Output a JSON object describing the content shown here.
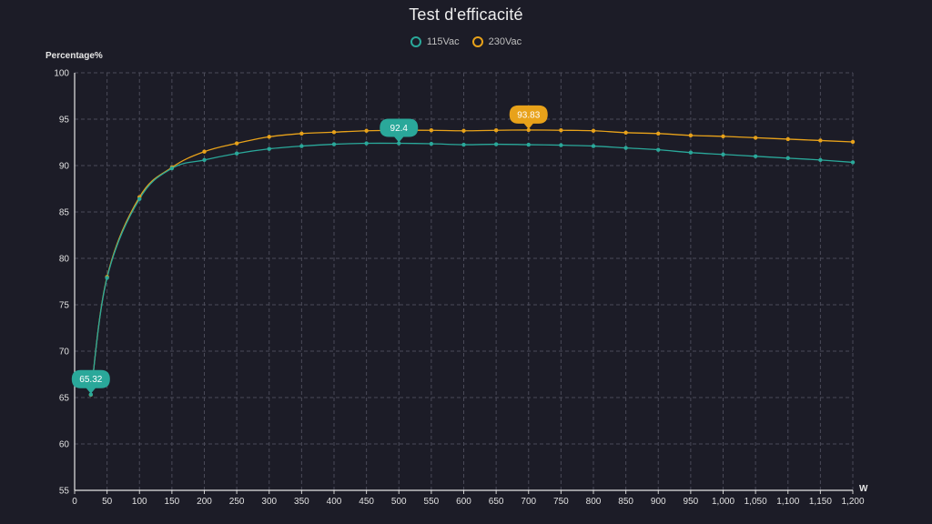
{
  "chart_data": {
    "type": "line",
    "title": "Test d'efficacité",
    "xlabel": "W",
    "ylabel": "Percentage%",
    "xlim": [
      0,
      1200
    ],
    "ylim": [
      55,
      100
    ],
    "grid": true,
    "legend_position": "top-center",
    "x_ticks": [
      "0",
      "50",
      "100",
      "150",
      "200",
      "250",
      "300",
      "350",
      "400",
      "450",
      "500",
      "550",
      "600",
      "650",
      "700",
      "750",
      "800",
      "850",
      "900",
      "950",
      "1,000",
      "1,050",
      "1,100",
      "1,150",
      "1,200"
    ],
    "y_ticks": [
      "55",
      "60",
      "65",
      "70",
      "75",
      "80",
      "85",
      "90",
      "95",
      "100"
    ],
    "x": [
      25,
      50,
      100,
      150,
      200,
      250,
      300,
      350,
      400,
      450,
      500,
      550,
      600,
      650,
      700,
      750,
      800,
      850,
      900,
      950,
      1000,
      1050,
      1100,
      1150,
      1200
    ],
    "series": [
      {
        "name": "115Vac",
        "color": "#2aa89a",
        "values": [
          65.32,
          77.9,
          86.4,
          89.7,
          90.6,
          91.3,
          91.8,
          92.1,
          92.3,
          92.4,
          92.4,
          92.35,
          92.25,
          92.3,
          92.25,
          92.2,
          92.1,
          91.9,
          91.7,
          91.4,
          91.2,
          91.0,
          90.8,
          90.6,
          90.35
        ],
        "markers": [
          {
            "label": "65.32",
            "index": 0
          },
          {
            "label": "92.4",
            "index": 10
          }
        ]
      },
      {
        "name": "230Vac",
        "color": "#e8a21a",
        "values": [
          65.3,
          78.0,
          86.6,
          89.8,
          91.5,
          92.4,
          93.1,
          93.45,
          93.6,
          93.75,
          93.8,
          93.8,
          93.75,
          93.8,
          93.83,
          93.8,
          93.75,
          93.55,
          93.45,
          93.25,
          93.15,
          93.0,
          92.85,
          92.7,
          92.55
        ],
        "markers": [
          {
            "label": "93.83",
            "index": 14
          }
        ]
      }
    ]
  }
}
